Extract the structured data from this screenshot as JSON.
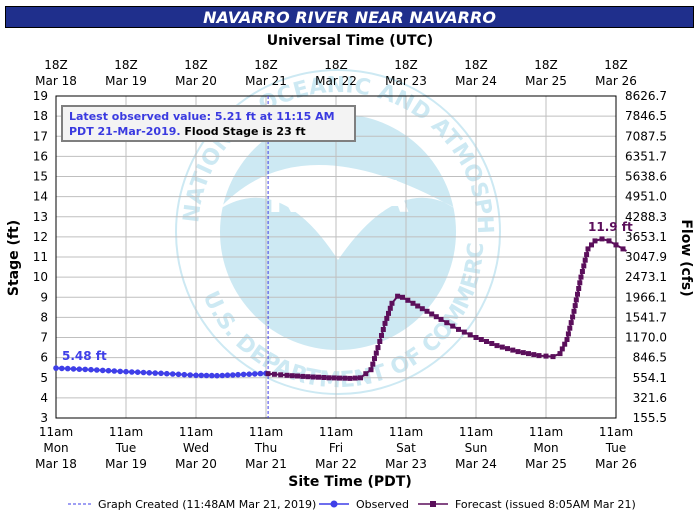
{
  "title": "NAVARRO RIVER NEAR NAVARRO",
  "top_axis_title": "Universal Time (UTC)",
  "bottom_axis_title": "Site Time (PDT)",
  "y_left_label": "Stage (ft)",
  "y_right_label": "Flow (cfs)",
  "note": {
    "line1": "Latest observed value: 5.21 ft at 11:15 AM",
    "line2_date": "PDT 21-Mar-2019.",
    "line2_flood": "Flood Stage is 23 ft"
  },
  "watermark": {
    "text": "NOAA",
    "ring_text": "NATIONAL OCEANIC AND ATMOSPHERIC ADMINISTRATION",
    "bottom_text": "U.S. DEPARTMENT OF COMMERCE"
  },
  "legend": {
    "created": "Graph Created (11:48AM Mar 21, 2019)",
    "observed": "Observed",
    "forecast": "Forecast (issued 8:05AM Mar 21)"
  },
  "colors": {
    "observed": "#3f3fe8",
    "forecast": "#5b0f5b",
    "grid": "#bfbfbf",
    "created_line": "#3f3fe8",
    "watermark": "#cde9f3"
  },
  "chart_data": {
    "type": "line",
    "ylim": [
      3,
      19
    ],
    "xlim": [
      0,
      8
    ],
    "x_unit": "days since Mar 18 11am PDT",
    "y_ticks": [
      3,
      4,
      5,
      6,
      7,
      8,
      9,
      10,
      11,
      12,
      13,
      14,
      15,
      16,
      17,
      18,
      19
    ],
    "right_ticks": [
      "155.5",
      "321.6",
      "554.1",
      "846.5",
      "1170.0",
      "1541.7",
      "1966.1",
      "2473.1",
      "3047.9",
      "3653.1",
      "4288.3",
      "4951.0",
      "5638.6",
      "6351.7",
      "7087.5",
      "7846.5",
      "8626.7"
    ],
    "bottom_ticks": [
      {
        "time": "11am",
        "day": "Mon",
        "date": "Mar 18"
      },
      {
        "time": "11am",
        "day": "Tue",
        "date": "Mar 19"
      },
      {
        "time": "11am",
        "day": "Wed",
        "date": "Mar 20"
      },
      {
        "time": "11am",
        "day": "Thu",
        "date": "Mar 21"
      },
      {
        "time": "11am",
        "day": "Fri",
        "date": "Mar 22"
      },
      {
        "time": "11am",
        "day": "Sat",
        "date": "Mar 23"
      },
      {
        "time": "11am",
        "day": "Sun",
        "date": "Mar 24"
      },
      {
        "time": "11am",
        "day": "Mon",
        "date": "Mar 25"
      },
      {
        "time": "11am",
        "day": "Tue",
        "date": "Mar 26"
      }
    ],
    "top_ticks": [
      {
        "z": "18Z",
        "date": "Mar 18"
      },
      {
        "z": "18Z",
        "date": "Mar 19"
      },
      {
        "z": "18Z",
        "date": "Mar 20"
      },
      {
        "z": "18Z",
        "date": "Mar 21"
      },
      {
        "z": "18Z",
        "date": "Mar 22"
      },
      {
        "z": "18Z",
        "date": "Mar 23"
      },
      {
        "z": "18Z",
        "date": "Mar 24"
      },
      {
        "z": "18Z",
        "date": "Mar 25"
      },
      {
        "z": "18Z",
        "date": "Mar 26"
      }
    ],
    "created_at_x": 3.03,
    "series": [
      {
        "name": "Observed",
        "points": [
          [
            0,
            5.48
          ],
          [
            0.5,
            5.4
          ],
          [
            1,
            5.3
          ],
          [
            1.5,
            5.22
          ],
          [
            2,
            5.12
          ],
          [
            2.3,
            5.1
          ],
          [
            2.6,
            5.15
          ],
          [
            3,
            5.22
          ],
          [
            3.03,
            5.21
          ]
        ]
      },
      {
        "name": "Forecast",
        "points": [
          [
            3.03,
            5.2
          ],
          [
            3.3,
            5.12
          ],
          [
            3.6,
            5.05
          ],
          [
            3.9,
            5.0
          ],
          [
            4.2,
            4.97
          ],
          [
            4.35,
            5.0
          ],
          [
            4.5,
            5.4
          ],
          [
            4.6,
            6.5
          ],
          [
            4.7,
            7.7
          ],
          [
            4.8,
            8.7
          ],
          [
            4.88,
            9.05
          ],
          [
            4.95,
            9.0
          ],
          [
            5.1,
            8.7
          ],
          [
            5.3,
            8.3
          ],
          [
            5.5,
            7.9
          ],
          [
            5.75,
            7.4
          ],
          [
            6.0,
            7.0
          ],
          [
            6.3,
            6.6
          ],
          [
            6.6,
            6.3
          ],
          [
            6.9,
            6.1
          ],
          [
            7.1,
            6.05
          ],
          [
            7.2,
            6.2
          ],
          [
            7.3,
            6.9
          ],
          [
            7.4,
            8.3
          ],
          [
            7.5,
            10.0
          ],
          [
            7.6,
            11.4
          ],
          [
            7.7,
            11.8
          ],
          [
            7.8,
            11.9
          ],
          [
            7.9,
            11.8
          ],
          [
            8.0,
            11.6
          ],
          [
            8.1,
            11.4
          ],
          [
            8.15,
            11.3
          ]
        ]
      }
    ],
    "annotations": [
      {
        "text": "5.48 ft",
        "x": 0,
        "y": 5.48,
        "series": "Observed"
      },
      {
        "text": "11.9 ft",
        "x": 7.8,
        "y": 11.9,
        "series": "Forecast"
      }
    ]
  }
}
